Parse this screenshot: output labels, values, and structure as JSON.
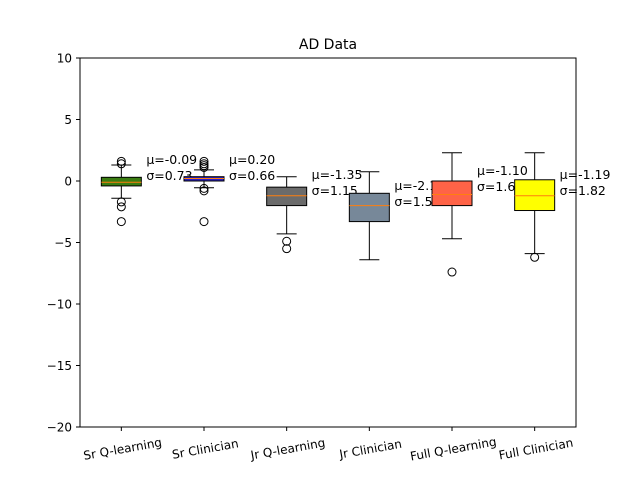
{
  "chart_data": {
    "type": "box",
    "title": "AD Data",
    "xlabel": "",
    "ylabel": "",
    "ylim": [
      -20,
      10
    ],
    "yticks": [
      -20,
      -15,
      -10,
      -5,
      0,
      5,
      10
    ],
    "grid": false,
    "categories": [
      "Sr Q-learning",
      "Sr Clinician",
      "Jr Q-learning",
      "Jr Clinician",
      "Full Q-learning",
      "Full Clinician"
    ],
    "colors": [
      "#3a7d11",
      "#2a1fc7",
      "#6b6b6b",
      "#778899",
      "#ff6347",
      "#ffff00"
    ],
    "median_color": "#ff7f0e",
    "boxes": [
      {
        "q1": -0.4,
        "median": -0.1,
        "q3": 0.3,
        "whisker_low": -1.4,
        "whisker_high": 1.3,
        "outliers": [
          1.6,
          1.4,
          -1.7,
          -2.1,
          -3.3
        ]
      },
      {
        "q1": 0.0,
        "median": 0.2,
        "q3": 0.35,
        "whisker_low": -0.55,
        "whisker_high": 0.9,
        "outliers": [
          1.6,
          1.4,
          1.25,
          1.1,
          -0.6,
          -0.8,
          -3.3
        ]
      },
      {
        "q1": -2.0,
        "median": -1.2,
        "q3": -0.5,
        "whisker_low": -4.3,
        "whisker_high": 0.35,
        "outliers": [
          -4.9,
          -5.5
        ]
      },
      {
        "q1": -3.3,
        "median": -2.0,
        "q3": -1.0,
        "whisker_low": -6.4,
        "whisker_high": 0.75,
        "outliers": []
      },
      {
        "q1": -2.0,
        "median": -1.1,
        "q3": 0.0,
        "whisker_low": -4.7,
        "whisker_high": 2.3,
        "outliers": [
          -7.4
        ]
      },
      {
        "q1": -2.4,
        "median": -1.2,
        "q3": 0.1,
        "whisker_low": -5.9,
        "whisker_high": 2.3,
        "outliers": [
          -6.2
        ]
      }
    ],
    "annotations": [
      {
        "mu": "μ=-0.09",
        "sigma": "σ=0.73"
      },
      {
        "mu": "μ=0.20",
        "sigma": "σ=0.66"
      },
      {
        "mu": "μ=-1.35",
        "sigma": "σ=1.15"
      },
      {
        "mu": "μ=-2.18",
        "sigma": "σ=1.54"
      },
      {
        "mu": "μ=-1.10",
        "sigma": "σ=1.67"
      },
      {
        "mu": "μ=-1.19",
        "sigma": "σ=1.82"
      }
    ]
  }
}
